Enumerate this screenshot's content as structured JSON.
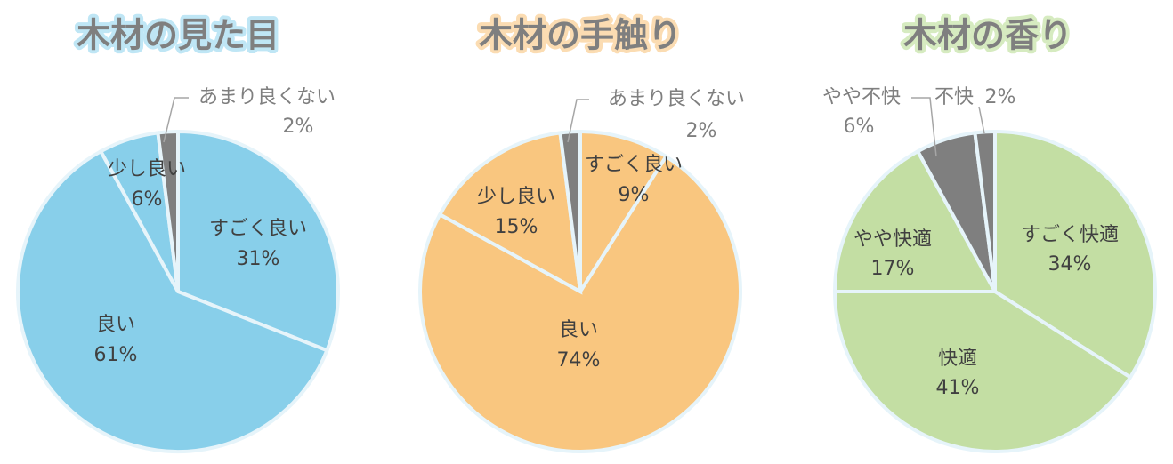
{
  "chart_data": [
    {
      "type": "pie",
      "title": "木材の見た目",
      "categories": [
        "すごく良い",
        "良い",
        "少し良い",
        "あまり良くない"
      ],
      "values": [
        31,
        61,
        6,
        2
      ],
      "value_labels": [
        "31%",
        "61%",
        "6%",
        "2%"
      ],
      "colors": [
        "#88cfea",
        "#88cfea",
        "#88cfea",
        "#7f7f7f"
      ],
      "title_glow": "#bfe6f5"
    },
    {
      "type": "pie",
      "title": "木材の手触り",
      "categories": [
        "すごく良い",
        "良い",
        "少し良い",
        "あまり良くない"
      ],
      "values": [
        9,
        74,
        15,
        2
      ],
      "value_labels": [
        "9%",
        "74%",
        "15%",
        "2%"
      ],
      "colors": [
        "#f9c67f",
        "#f9c67f",
        "#f9c67f",
        "#7f7f7f"
      ],
      "title_glow": "#fbdcb2"
    },
    {
      "type": "pie",
      "title": "木材の香り",
      "categories": [
        "すごく快適",
        "快適",
        "やや快適",
        "やや不快",
        "不快"
      ],
      "values": [
        34,
        41,
        17,
        6,
        2
      ],
      "value_labels": [
        "34%",
        "41%",
        "17%",
        "6%",
        "2%"
      ],
      "colors": [
        "#c3dea3",
        "#c3dea3",
        "#c3dea3",
        "#7f7f7f",
        "#7f7f7f"
      ],
      "title_glow": "#d6ebc0"
    }
  ]
}
